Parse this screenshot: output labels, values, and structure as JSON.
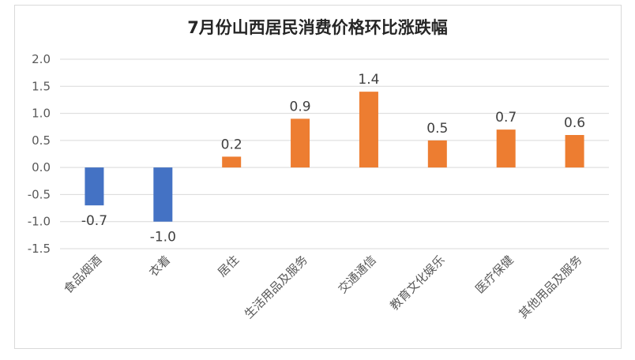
{
  "chart_data": {
    "type": "bar",
    "title": "7月份山西居民消费价格环比涨跌幅",
    "categories": [
      "食品烟酒",
      "衣着",
      "居住",
      "生活用品及服务",
      "交通通信",
      "教育文化娱乐",
      "医疗保健",
      "其他用品及服务"
    ],
    "values": [
      -0.7,
      -1.0,
      0.2,
      0.9,
      1.4,
      0.5,
      0.7,
      0.6
    ],
    "data_labels": [
      "-0.7",
      "-1.0",
      "0.2",
      "0.9",
      "1.4",
      "0.5",
      "0.7",
      "0.6"
    ],
    "yticks": [
      "2.0",
      "1.5",
      "1.0",
      "0.5",
      "0.0",
      "-0.5",
      "-1.0",
      "-1.5"
    ],
    "ylim": [
      -1.5,
      2.0
    ],
    "grid": true,
    "colors": {
      "negative": "#4472c4",
      "positive": "#ed7d31"
    }
  }
}
